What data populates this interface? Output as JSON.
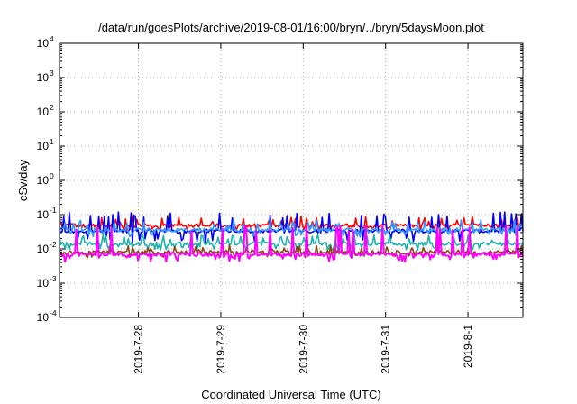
{
  "chart_data": {
    "type": "line",
    "title": "/data/run/goesPlots/archive/2019-08-01/16:00/bryn/../bryn/5daysMoon.plot",
    "xlabel": "Coordinated Universal Time (UTC)",
    "ylabel": "cSv/day",
    "yscale": "log",
    "ylim": [
      0.0001,
      10000
    ],
    "yticks": [
      {
        "base": "10",
        "exp": "-4",
        "value": 0.0001
      },
      {
        "base": "10",
        "exp": "-3",
        "value": 0.001
      },
      {
        "base": "10",
        "exp": "-2",
        "value": 0.01
      },
      {
        "base": "10",
        "exp": "-1",
        "value": 0.1
      },
      {
        "base": "10",
        "exp": "0",
        "value": 1
      },
      {
        "base": "10",
        "exp": "1",
        "value": 10
      },
      {
        "base": "10",
        "exp": "2",
        "value": 100
      },
      {
        "base": "10",
        "exp": "3",
        "value": 1000
      },
      {
        "base": "10",
        "exp": "4",
        "value": 10000
      }
    ],
    "xlim": [
      "2019-07-27 01:00",
      "2019-08-01 16:00"
    ],
    "xticks": [
      {
        "label": "2019-7-28",
        "date": "2019-07-28"
      },
      {
        "label": "2019-7-29",
        "date": "2019-07-29"
      },
      {
        "label": "2019-7-30",
        "date": "2019-07-30"
      },
      {
        "label": "2019-7-31",
        "date": "2019-07-31"
      },
      {
        "label": "2019-8-1",
        "date": "2019-08-01"
      }
    ],
    "grid": true,
    "series": [
      {
        "color": "#ff0000",
        "baseline": 0.048,
        "spike": 0.075,
        "dip": 0.038
      },
      {
        "color": "#0000ff",
        "baseline": 0.033,
        "spike": 0.1,
        "dip": 0.018
      },
      {
        "color": "#3399ff",
        "baseline": 0.036,
        "spike": 0.06,
        "dip": 0.026
      },
      {
        "color": "#20b2aa",
        "baseline": 0.014,
        "spike": 0.022,
        "dip": 0.01
      },
      {
        "color": "#8b4513",
        "baseline": 0.008,
        "spike": 0.011,
        "dip": 0.0065
      },
      {
        "color": "#ff00ff",
        "baseline": 0.007,
        "spike": 0.04,
        "dip": 0.005
      }
    ]
  }
}
